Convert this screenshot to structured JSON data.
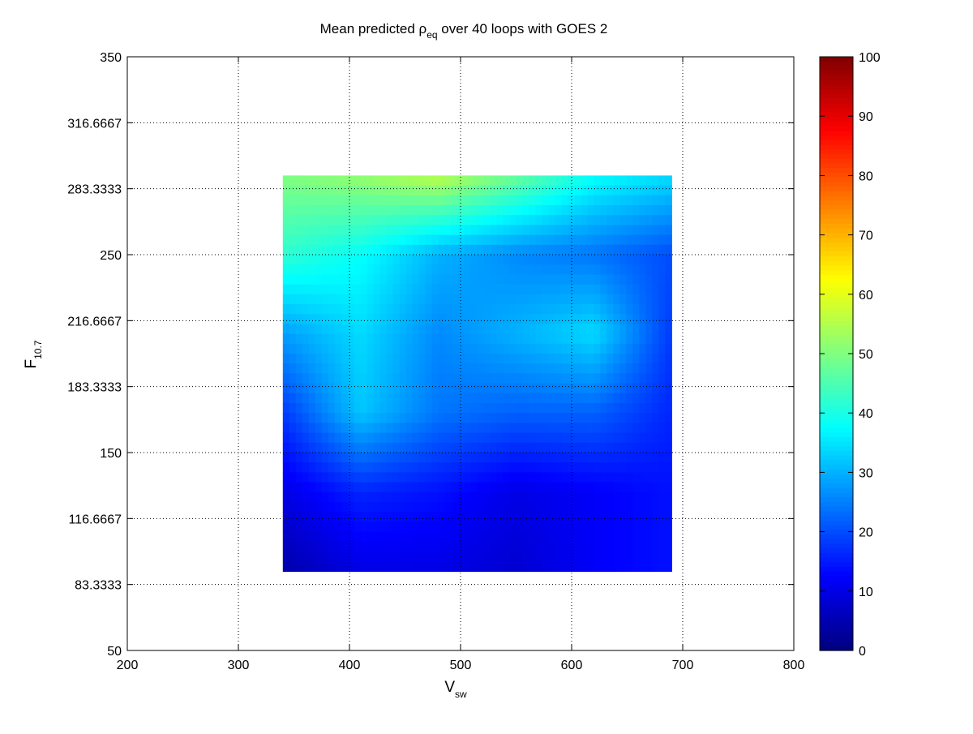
{
  "chart_data": {
    "type": "heatmap",
    "title": {
      "prefix": "Mean predicted ",
      "symbol": "ρ",
      "subscript": "eq",
      "suffix": " over 40 loops with GOES 2"
    },
    "xlabel": {
      "base": "V",
      "subscript": "sw"
    },
    "ylabel": {
      "base": "F",
      "subscript": "10.7"
    },
    "xlim": [
      200,
      800
    ],
    "ylim": [
      50,
      350
    ],
    "x_ticks": [
      "200",
      "300",
      "400",
      "500",
      "600",
      "700",
      "800"
    ],
    "y_ticks": [
      "50",
      "83.3333",
      "116.6667",
      "150",
      "183.3333",
      "216.6667",
      "250",
      "283.3333",
      "316.6667",
      "350"
    ],
    "grid": true,
    "grid_style": "dotted",
    "colormap": "jet",
    "clim": [
      0,
      100
    ],
    "colorbar_ticks": [
      "0",
      "10",
      "20",
      "30",
      "40",
      "50",
      "60",
      "70",
      "80",
      "90",
      "100"
    ],
    "data_extent": {
      "x": [
        340,
        690
      ],
      "y": [
        90,
        290
      ]
    },
    "grid_x": [
      340,
      410,
      480,
      550,
      620,
      690
    ],
    "grid_y": [
      290,
      250,
      210,
      170,
      130,
      90
    ],
    "z": [
      [
        50,
        52,
        56,
        48,
        38,
        34
      ],
      [
        42,
        38,
        30,
        26,
        24,
        20
      ],
      [
        28,
        34,
        26,
        30,
        34,
        18
      ],
      [
        18,
        32,
        24,
        22,
        22,
        16
      ],
      [
        10,
        16,
        14,
        10,
        12,
        14
      ],
      [
        4,
        10,
        10,
        8,
        12,
        14
      ]
    ]
  }
}
